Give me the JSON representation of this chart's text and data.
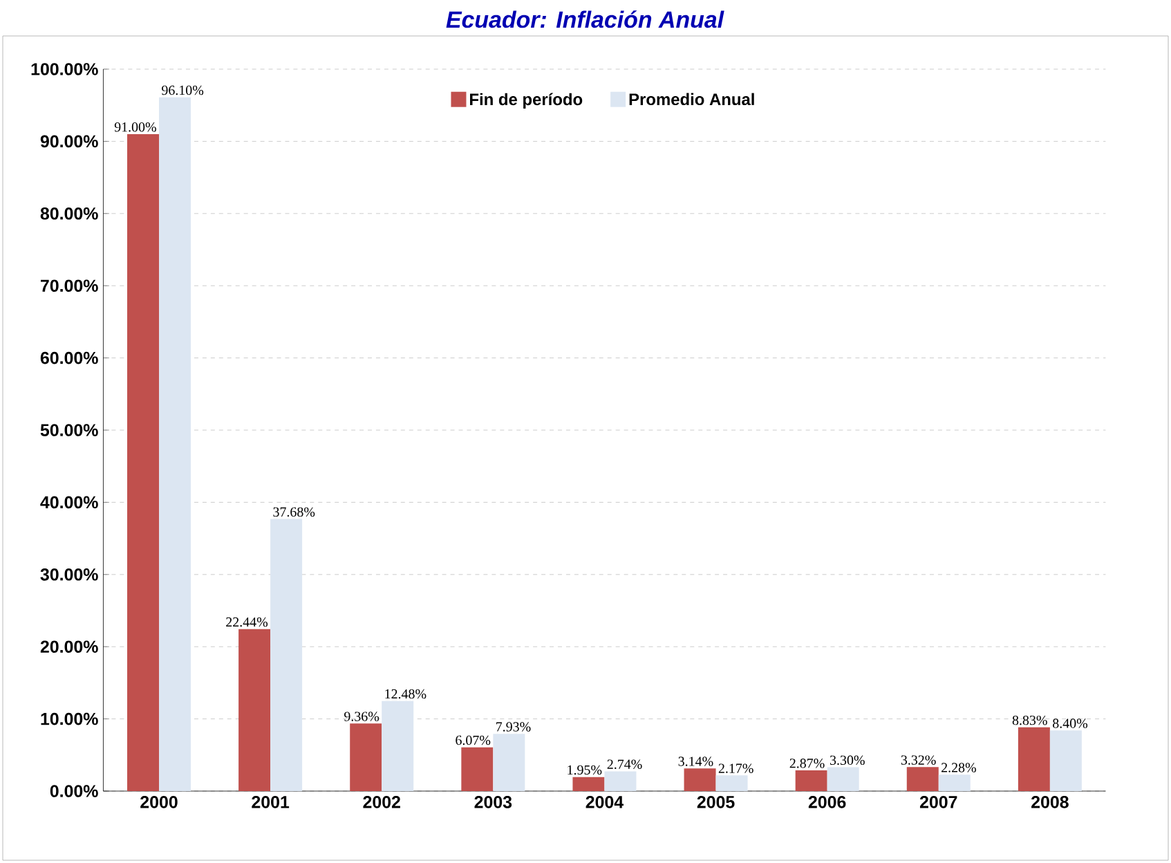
{
  "chart_data": {
    "type": "bar",
    "title": "Ecuador:  Inflación Anual",
    "categories": [
      "2000",
      "2001",
      "2002",
      "2003",
      "2004",
      "2005",
      "2006",
      "2007",
      "2008"
    ],
    "series": [
      {
        "name": "Fin de período",
        "color": "#c0504d",
        "values": [
          91.0,
          22.44,
          9.36,
          6.07,
          1.95,
          3.14,
          2.87,
          3.32,
          8.83
        ],
        "value_labels": [
          "91.00%",
          "22.44%",
          "9.36%",
          "6.07%",
          "1.95%",
          "3.14%",
          "2.87%",
          "3.32%",
          "8.83%"
        ]
      },
      {
        "name": "Promedio Anual",
        "color": "#dce6f2",
        "values": [
          96.1,
          37.68,
          12.48,
          7.93,
          2.74,
          2.17,
          3.3,
          2.28,
          8.4
        ],
        "value_labels": [
          "96.10%",
          "37.68%",
          "12.48%",
          "7.93%",
          "2.74%",
          "2.17%",
          "3.30%",
          "2.28%",
          "8.40%"
        ]
      }
    ],
    "ylim": [
      0,
      100
    ],
    "yticks": [
      {
        "value": 0,
        "label": "0.00%"
      },
      {
        "value": 10,
        "label": "10.00%"
      },
      {
        "value": 20,
        "label": "20.00%"
      },
      {
        "value": 30,
        "label": "30.00%"
      },
      {
        "value": 40,
        "label": "40.00%"
      },
      {
        "value": 50,
        "label": "50.00%"
      },
      {
        "value": 60,
        "label": "60.00%"
      },
      {
        "value": 70,
        "label": "70.00%"
      },
      {
        "value": 80,
        "label": "80.00%"
      },
      {
        "value": 90,
        "label": "90.00%"
      },
      {
        "value": 100,
        "label": "100.00%"
      }
    ],
    "grid": "y",
    "legend": "top"
  }
}
